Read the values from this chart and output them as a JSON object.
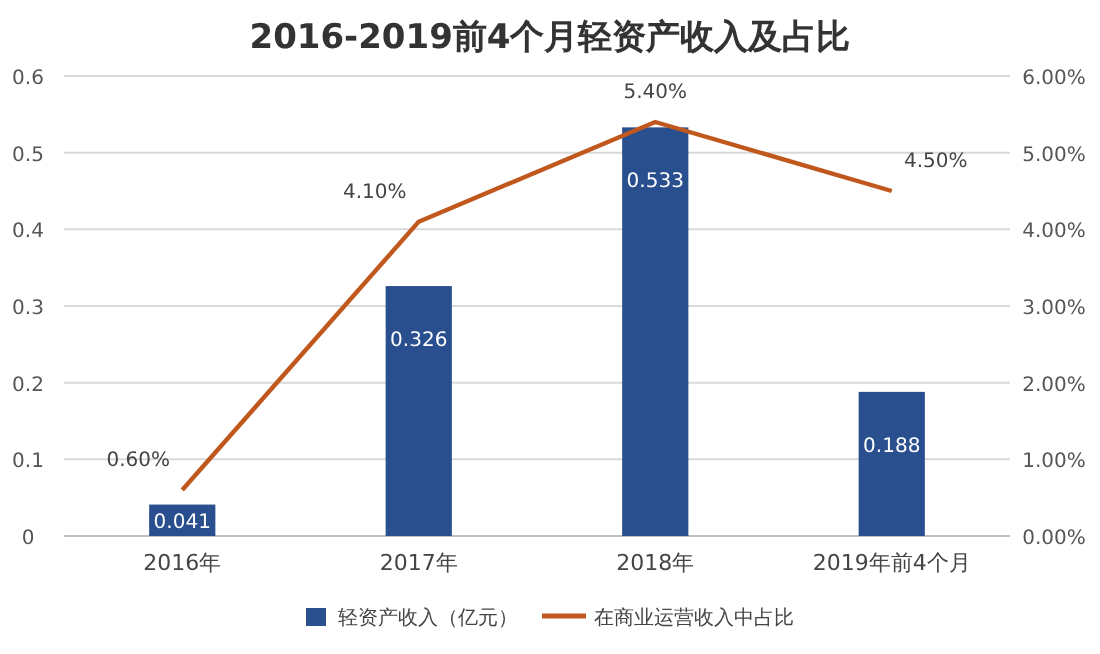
{
  "chart_data": {
    "type": "bar",
    "title": "2016-2019前4个月轻资产收入及占比",
    "categories": [
      "2016年",
      "2017年",
      "2018年",
      "2019年前4个月"
    ],
    "series": [
      {
        "name": "轻资产收入（亿元）",
        "color": "#2a4f8f",
        "values": [
          0.041,
          0.326,
          0.533,
          0.188
        ],
        "value_labels": [
          "0.041",
          "0.326",
          "0.533",
          "0.188"
        ]
      },
      {
        "name": "在商业运营收入中占比",
        "type": "line",
        "axis": "y2",
        "color": "#c0581e",
        "values": [
          0.6,
          4.1,
          5.4,
          4.5
        ],
        "value_labels": [
          "0.60%",
          "4.10%",
          "5.40%",
          "4.50%"
        ]
      }
    ],
    "ylim": [
      0,
      0.6
    ],
    "yticks": [
      0,
      0.1,
      0.2,
      0.3,
      0.4,
      0.5,
      0.6
    ],
    "y2lim": [
      0,
      6
    ],
    "y2ticks": [
      {
        "value": 0,
        "label": "0.00%"
      },
      {
        "value": 1,
        "label": "1.00%"
      },
      {
        "value": 2,
        "label": "2.00%"
      },
      {
        "value": 3,
        "label": "3.00%"
      },
      {
        "value": 4,
        "label": "4.00%"
      },
      {
        "value": 5,
        "label": "5.00%"
      },
      {
        "value": 6,
        "label": "6.00%"
      }
    ],
    "grid": "y",
    "legend": "bottom"
  }
}
